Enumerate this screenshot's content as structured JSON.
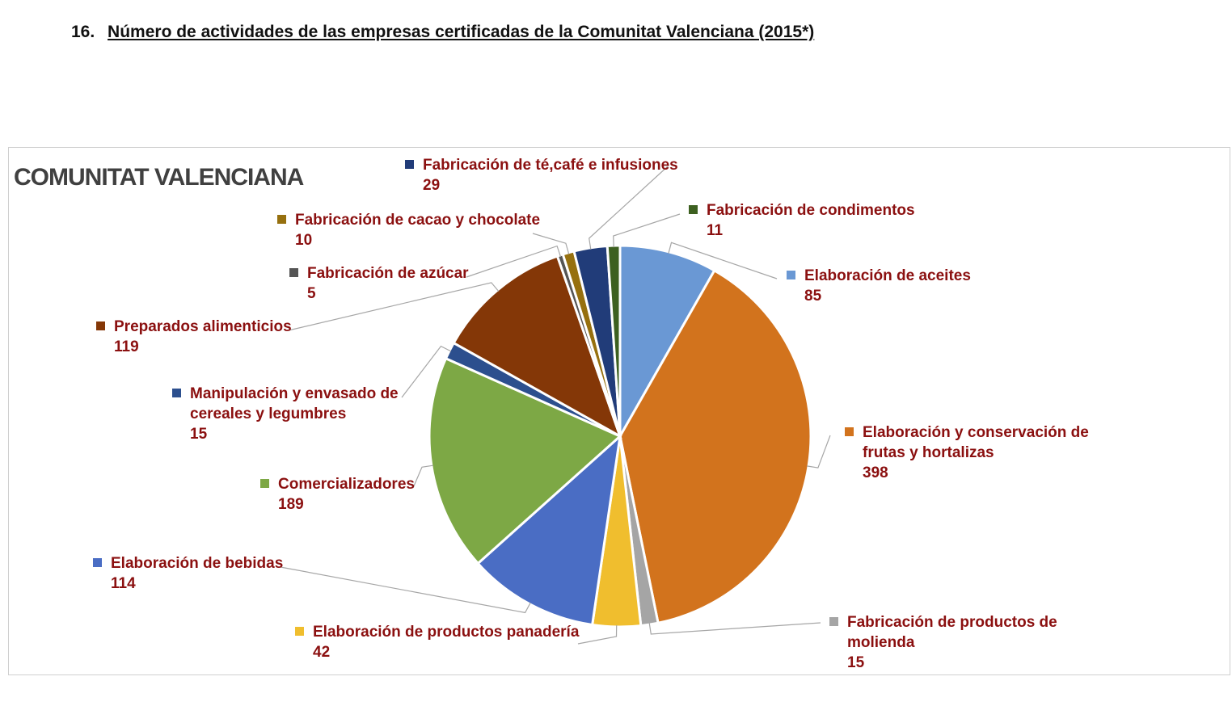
{
  "heading": {
    "number": "16.",
    "text": "Número de actividades de las empresas certificadas de la Comunitat Valenciana (2015*)"
  },
  "chart_data": {
    "type": "pie",
    "title": "COMUNITAT VALENCIANA",
    "slices": [
      {
        "label": "Elaboración de aceites",
        "value": 85,
        "color": "#6a98d4"
      },
      {
        "label": "Elaboración y conservación de frutas y hortalizas",
        "value": 398,
        "color": "#d2731d"
      },
      {
        "label": "Fabricación de productos de molienda",
        "value": 15,
        "color": "#a5a5a5"
      },
      {
        "label": "Elaboración de productos panadería",
        "value": 42,
        "color": "#f0be2e"
      },
      {
        "label": "Elaboración de bebidas",
        "value": 114,
        "color": "#4a6dc4"
      },
      {
        "label": "Comercializadores",
        "value": 189,
        "color": "#7da845"
      },
      {
        "label": "Manipulación y envasado de cereales y legumbres",
        "value": 15,
        "color": "#2c4f8e"
      },
      {
        "label": "Preparados alimenticios",
        "value": 119,
        "color": "#843707"
      },
      {
        "label": "Fabricación de azúcar",
        "value": 5,
        "color": "#555555"
      },
      {
        "label": "Fabricación de cacao y chocolate",
        "value": 10,
        "color": "#96700f"
      },
      {
        "label": "Fabricación de té,café e infusiones",
        "value": 29,
        "color": "#213c79"
      },
      {
        "label": "Fabricación de condimentos",
        "value": 11,
        "color": "#3d6020"
      }
    ]
  },
  "labels": [
    {
      "lines": [
        "Elaboración de aceites"
      ],
      "value": "85"
    },
    {
      "lines": [
        "Elaboración y conservación de",
        "frutas y hortalizas"
      ],
      "value": "398"
    },
    {
      "lines": [
        "Fabricación de productos de",
        "molienda"
      ],
      "value": "15"
    },
    {
      "lines": [
        "Elaboración de productos panadería"
      ],
      "value": "42"
    },
    {
      "lines": [
        "Elaboración de bebidas"
      ],
      "value": "114"
    },
    {
      "lines": [
        "Comercializadores"
      ],
      "value": "189"
    },
    {
      "lines": [
        "Manipulación y envasado de",
        "cereales y legumbres"
      ],
      "value": "15"
    },
    {
      "lines": [
        "Preparados alimenticios"
      ],
      "value": "119"
    },
    {
      "lines": [
        "Fabricación de azúcar"
      ],
      "value": "5"
    },
    {
      "lines": [
        "Fabricación de cacao y chocolate"
      ],
      "value": "10"
    },
    {
      "lines": [
        "Fabricación de té,café e infusiones"
      ],
      "value": "29"
    },
    {
      "lines": [
        "Fabricación de condimentos"
      ],
      "value": "11"
    }
  ]
}
